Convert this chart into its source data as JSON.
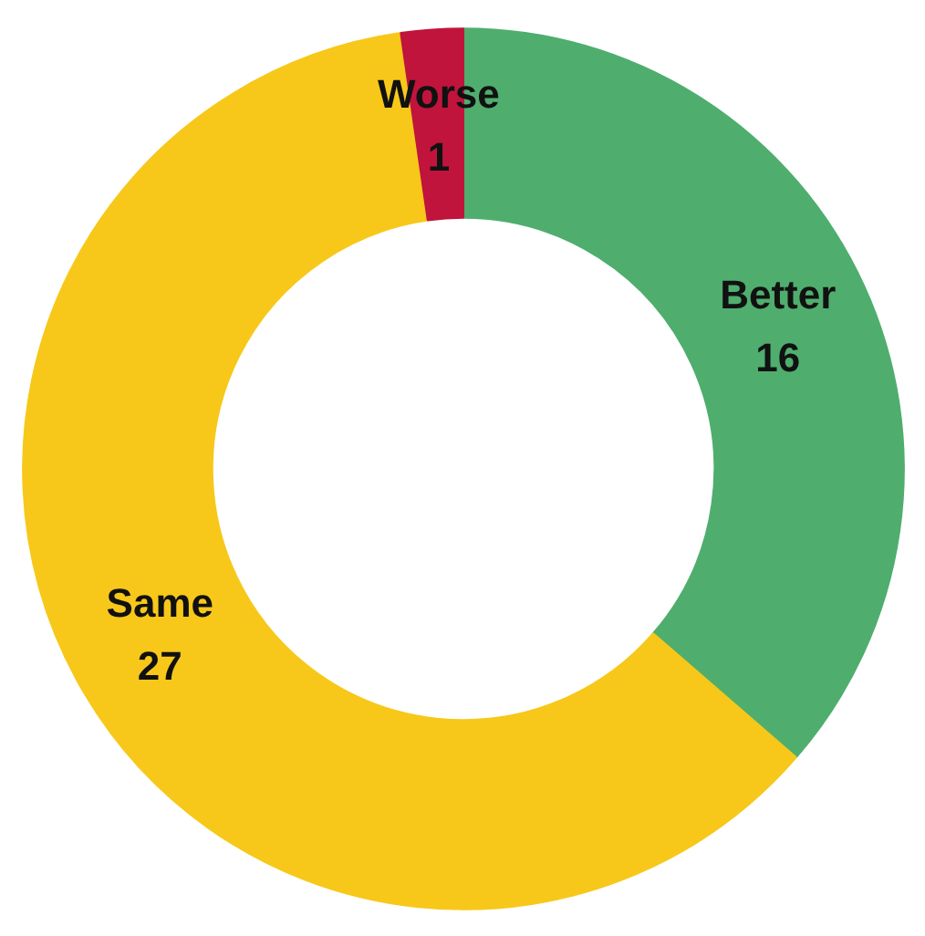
{
  "chart_data": {
    "type": "donut",
    "categories": [
      "Better",
      "Same",
      "Worse"
    ],
    "values": [
      16,
      27,
      1
    ],
    "colors": [
      "#4fae6e",
      "#f7c81a",
      "#c0143c"
    ],
    "data_labels": true
  }
}
